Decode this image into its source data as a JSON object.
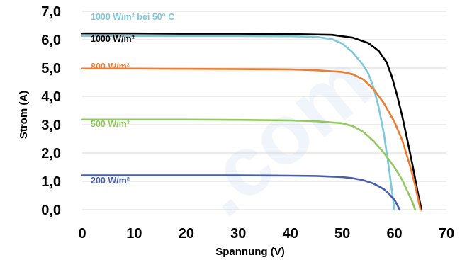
{
  "chart_data": {
    "type": "line",
    "title": "",
    "xlabel": "Spannung (V)",
    "ylabel": "Strom (A)",
    "xlim": [
      0,
      70
    ],
    "ylim": [
      0,
      7
    ],
    "x_ticks": [
      0,
      10,
      20,
      30,
      40,
      50,
      60,
      70
    ],
    "y_ticks": [
      "0,0",
      "1,0",
      "2,0",
      "3,0",
      "4,0",
      "5,0",
      "6,0",
      "7,0"
    ],
    "grid": "horizontal",
    "legend": "inline labels",
    "watermark": ".com",
    "series": [
      {
        "name": "1000 W/m² bei 50° C",
        "color": "#7ec8dc",
        "points": [
          [
            0,
            6.13
          ],
          [
            10,
            6.13
          ],
          [
            20,
            6.13
          ],
          [
            30,
            6.13
          ],
          [
            40,
            6.12
          ],
          [
            45,
            6.1
          ],
          [
            48,
            6.02
          ],
          [
            50,
            5.86
          ],
          [
            52,
            5.55
          ],
          [
            54,
            5.1
          ],
          [
            55,
            4.8
          ],
          [
            56,
            4.3
          ],
          [
            57,
            3.6
          ],
          [
            58,
            2.65
          ],
          [
            59,
            1.4
          ],
          [
            59.6,
            0.55
          ],
          [
            60,
            0.0
          ]
        ]
      },
      {
        "name": "1000 W/m²",
        "color": "#000000",
        "points": [
          [
            0,
            6.22
          ],
          [
            10,
            6.22
          ],
          [
            20,
            6.21
          ],
          [
            30,
            6.21
          ],
          [
            40,
            6.2
          ],
          [
            48,
            6.17
          ],
          [
            52,
            6.07
          ],
          [
            55,
            5.88
          ],
          [
            57,
            5.6
          ],
          [
            58.5,
            5.2
          ],
          [
            59.5,
            4.7
          ],
          [
            60.5,
            4.05
          ],
          [
            61.5,
            3.3
          ],
          [
            62.5,
            2.45
          ],
          [
            63.5,
            1.55
          ],
          [
            64.5,
            0.6
          ],
          [
            65.2,
            0.0
          ]
        ]
      },
      {
        "name": "800 W/m²",
        "color": "#ed7d31",
        "points": [
          [
            0,
            4.98
          ],
          [
            10,
            4.98
          ],
          [
            20,
            4.97
          ],
          [
            30,
            4.96
          ],
          [
            40,
            4.95
          ],
          [
            45,
            4.92
          ],
          [
            50,
            4.86
          ],
          [
            52,
            4.78
          ],
          [
            54,
            4.6
          ],
          [
            56,
            4.25
          ],
          [
            58,
            3.75
          ],
          [
            60,
            3.1
          ],
          [
            61.5,
            2.45
          ],
          [
            63,
            1.55
          ],
          [
            64,
            0.85
          ],
          [
            65,
            0.0
          ]
        ]
      },
      {
        "name": "500 W/m²",
        "color": "#92c95f",
        "points": [
          [
            0,
            3.18
          ],
          [
            10,
            3.18
          ],
          [
            20,
            3.18
          ],
          [
            30,
            3.17
          ],
          [
            40,
            3.15
          ],
          [
            45,
            3.12
          ],
          [
            50,
            3.05
          ],
          [
            52,
            2.95
          ],
          [
            54,
            2.75
          ],
          [
            56,
            2.42
          ],
          [
            58,
            2.0
          ],
          [
            60,
            1.5
          ],
          [
            61.5,
            1.05
          ],
          [
            62.5,
            0.65
          ],
          [
            63.5,
            0.25
          ],
          [
            64,
            0.0
          ]
        ]
      },
      {
        "name": "200 W/m²",
        "color": "#4a5ea8",
        "points": [
          [
            0,
            1.21
          ],
          [
            10,
            1.21
          ],
          [
            20,
            1.21
          ],
          [
            30,
            1.21
          ],
          [
            40,
            1.2
          ],
          [
            45,
            1.19
          ],
          [
            50,
            1.15
          ],
          [
            52,
            1.11
          ],
          [
            54,
            1.04
          ],
          [
            56,
            0.92
          ],
          [
            58,
            0.72
          ],
          [
            59,
            0.55
          ],
          [
            60,
            0.35
          ],
          [
            60.6,
            0.15
          ],
          [
            61,
            0.0
          ]
        ]
      }
    ]
  }
}
